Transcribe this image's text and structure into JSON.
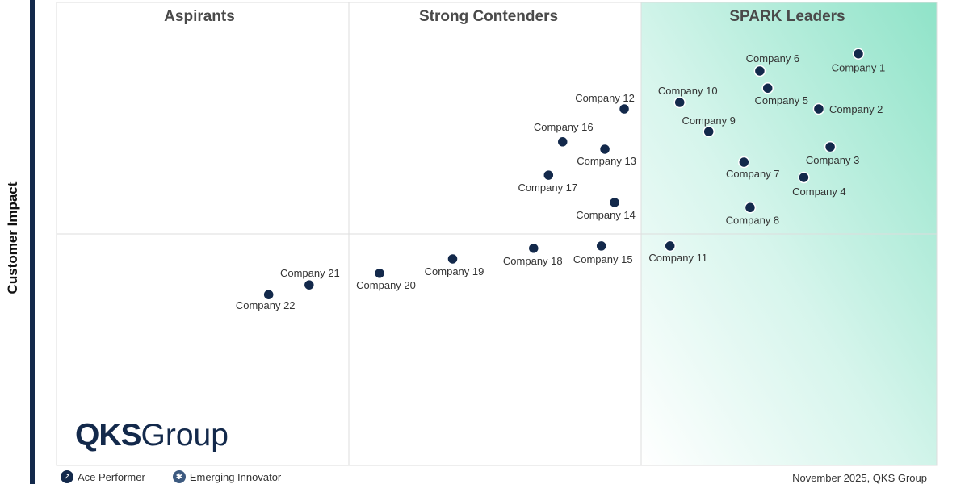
{
  "chart_data": {
    "type": "scatter",
    "title": "",
    "ylabel": "Customer Impact",
    "xlabel": "",
    "xlim": [
      0,
      100
    ],
    "ylim": [
      0,
      100
    ],
    "grid": false,
    "quadrants": [
      "Aspirants",
      "Strong Contenders",
      "SPARK Leaders"
    ],
    "points": [
      {
        "name": "Company 1",
        "x": 91.1,
        "y": 88.9
      },
      {
        "name": "Company 2",
        "x": 86.6,
        "y": 77.0
      },
      {
        "name": "Company 3",
        "x": 87.9,
        "y": 68.8
      },
      {
        "name": "Company 4",
        "x": 84.9,
        "y": 62.2
      },
      {
        "name": "Company 5",
        "x": 80.8,
        "y": 81.5
      },
      {
        "name": "Company 6",
        "x": 79.9,
        "y": 85.2
      },
      {
        "name": "Company 7",
        "x": 78.1,
        "y": 65.5
      },
      {
        "name": "Company 8",
        "x": 78.8,
        "y": 55.7
      },
      {
        "name": "Company 9",
        "x": 74.1,
        "y": 72.1
      },
      {
        "name": "Company 10",
        "x": 70.8,
        "y": 78.4
      },
      {
        "name": "Company 11",
        "x": 69.7,
        "y": 47.4
      },
      {
        "name": "Company 12",
        "x": 64.5,
        "y": 77.0
      },
      {
        "name": "Company 13",
        "x": 62.3,
        "y": 68.3
      },
      {
        "name": "Company 14",
        "x": 63.4,
        "y": 56.8
      },
      {
        "name": "Company 15",
        "x": 61.9,
        "y": 47.4
      },
      {
        "name": "Company 16",
        "x": 57.5,
        "y": 69.9
      },
      {
        "name": "Company 17",
        "x": 55.9,
        "y": 62.7
      },
      {
        "name": "Company 18",
        "x": 54.2,
        "y": 46.9
      },
      {
        "name": "Company 19",
        "x": 45.0,
        "y": 44.6
      },
      {
        "name": "Company 20",
        "x": 36.7,
        "y": 41.5
      },
      {
        "name": "Company 21",
        "x": 28.7,
        "y": 39.0
      },
      {
        "name": "Company 22",
        "x": 24.1,
        "y": 36.9
      }
    ],
    "colors": {
      "point": "#13294b",
      "leaders_gradient": "#8fe3c8",
      "axis_bar": "#13294b"
    }
  },
  "logo": {
    "bold": "QKS",
    "light": "Group"
  },
  "legend": [
    {
      "label": "Ace Performer",
      "icon": "trend-up-icon"
    },
    {
      "label": "Emerging Innovator",
      "icon": "lightbulb-icon"
    }
  ],
  "footer": "November 2025, QKS Group"
}
